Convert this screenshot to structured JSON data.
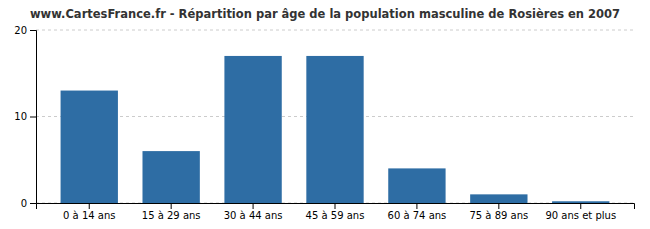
{
  "chart_data": {
    "type": "bar",
    "title": "www.CartesFrance.fr - Répartition par âge de la population masculine de Rosières en 2007",
    "categories": [
      "0 à 14 ans",
      "15 à 29 ans",
      "30 à 44 ans",
      "45 à 59 ans",
      "60 à 74 ans",
      "75 à 89 ans",
      "90 ans et plus"
    ],
    "values": [
      13,
      6,
      17,
      17,
      4,
      1,
      0.2
    ],
    "color": "#2e6da4",
    "ylim": [
      0,
      20
    ],
    "yticks": [
      0,
      10,
      20
    ],
    "grid": true
  }
}
